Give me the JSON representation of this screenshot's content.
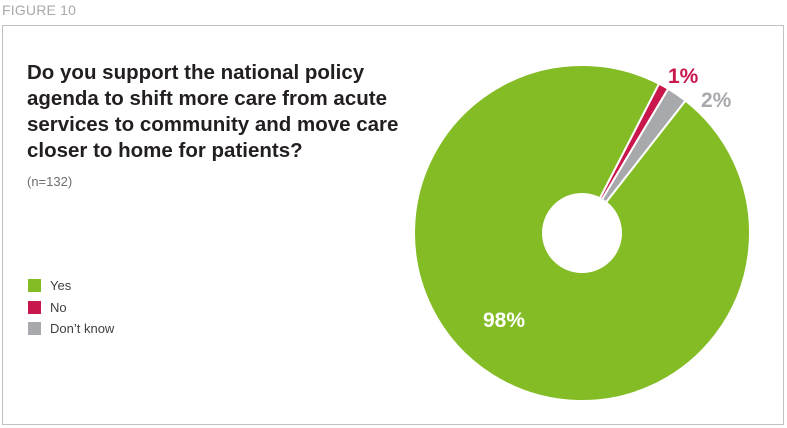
{
  "figure_label": "FIGURE 10",
  "chart_data": {
    "type": "pie",
    "title": "Do you support the national policy agenda to shift more care from acute services to community and move care closer to home for patients?",
    "subtitle": "(n=132)",
    "donut_hole": true,
    "legend_position": "left",
    "categories": [
      "Yes",
      "No",
      "Don’t know"
    ],
    "values": [
      98,
      1,
      2
    ],
    "value_labels": [
      "98%",
      "1%",
      "2%"
    ],
    "colors": [
      "#84bc26",
      "#c8174b",
      "#a7a9ac"
    ]
  }
}
